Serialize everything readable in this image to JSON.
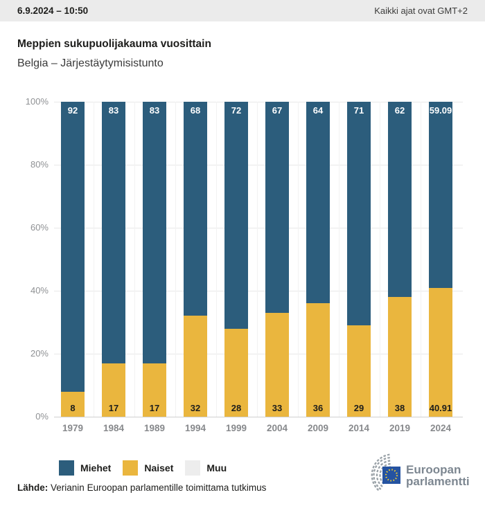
{
  "header": {
    "datetime": "6.9.2024 – 10:50",
    "timezone_note": "Kaikki ajat ovat GMT+2"
  },
  "title": "Meppien sukupuolijakauma vuosittain",
  "subtitle": "Belgia – Järjestäytymisistunto",
  "chart_data": {
    "type": "bar",
    "stacked": true,
    "title": "Meppien sukupuolijakauma vuosittain",
    "subtitle": "Belgia – Järjestäytymisistunto",
    "categories": [
      "1979",
      "1984",
      "1989",
      "1994",
      "1999",
      "2004",
      "2009",
      "2014",
      "2019",
      "2024"
    ],
    "series": [
      {
        "name": "Miehet",
        "color": "#2c5d7c",
        "label_color": "#ffffff",
        "label_pos": "top",
        "values": [
          92,
          83,
          83,
          68,
          72,
          67,
          64,
          71,
          62,
          59.09
        ]
      },
      {
        "name": "Naiset",
        "color": "#eab63e",
        "label_color": "#1d1d1b",
        "label_pos": "bottom",
        "values": [
          8,
          17,
          17,
          32,
          28,
          33,
          36,
          29,
          38,
          40.91
        ]
      },
      {
        "name": "Muu",
        "color": "#ededed",
        "label_color": "#1d1d1b",
        "label_pos": "bottom",
        "values": [
          0,
          0,
          0,
          0,
          0,
          0,
          0,
          0,
          0,
          0
        ]
      }
    ],
    "xlabel": "",
    "ylabel": "",
    "ylim": [
      0,
      100
    ],
    "yticks": [
      0,
      20,
      40,
      60,
      80,
      100
    ],
    "ytick_suffix": "%",
    "grid": true,
    "legend_position": "bottom"
  },
  "legend": {
    "items": [
      {
        "label": "Miehet",
        "color": "#2c5d7c"
      },
      {
        "label": "Naiset",
        "color": "#eab63e"
      },
      {
        "label": "Muu",
        "color": "#ededed"
      }
    ]
  },
  "footer": {
    "source_label": "Lähde:",
    "source_text": "Verianin Euroopan parlamentille toimittama tutkimus"
  },
  "logo": {
    "line1": "Euroopan",
    "line2": "parlamentti"
  },
  "colors": {
    "men": "#2c5d7c",
    "women": "#eab63e",
    "other": "#ededed",
    "header_bg": "#ebebeb",
    "gridline": "#e8e8e8",
    "axis_text": "#8f9194",
    "text": "#1d1d1b",
    "eu_flag_blue": "#2553a1",
    "eu_star_yellow": "#f8d12e",
    "logo_gray": "#7d8791"
  }
}
